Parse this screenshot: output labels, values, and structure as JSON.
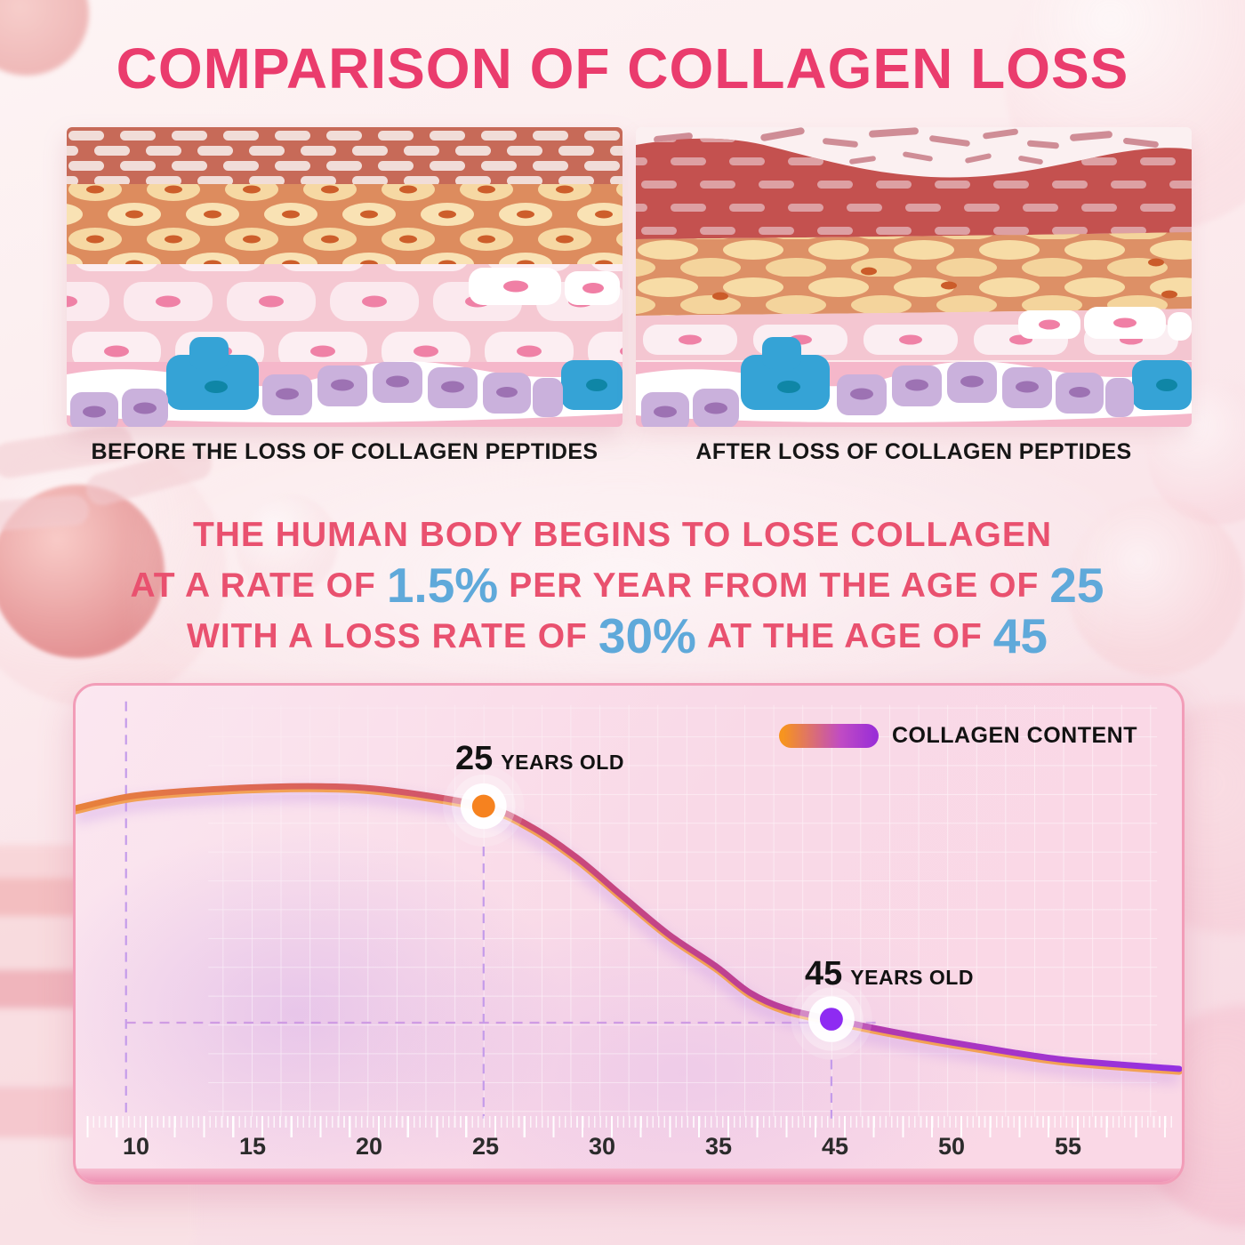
{
  "title": "COMPARISON OF COLLAGEN LOSS",
  "colors": {
    "title": "#EA3C6D",
    "statement_text": "#E9516F",
    "statement_numbers": "#5FA9DA",
    "panel_border": "#F29DB8",
    "curve_gradient_start": "#E8823A",
    "curve_gradient_end": "#9330E2"
  },
  "panels": {
    "before": {
      "label": "BEFORE THE LOSS OF COLLAGEN PEPTIDES"
    },
    "after": {
      "label": "AFTER LOSS OF COLLAGEN PEPTIDES"
    }
  },
  "statement": {
    "line1": "THE HUMAN BODY BEGINS TO LOSE COLLAGEN",
    "line2a": "AT A RATE OF",
    "line2_rate": "1.5%",
    "line2b": "PER YEAR FROM THE AGE OF",
    "line2_age": "25",
    "line3a": "WITH A LOSS RATE OF",
    "line3_rate": "30%",
    "line3b": "AT THE AGE OF",
    "line3_age": "45"
  },
  "chart": {
    "legend_label": "COLLAGEN CONTENT",
    "x_ticks": [
      "10",
      "15",
      "20",
      "25",
      "30",
      "35",
      "45",
      "50",
      "55"
    ]
  },
  "chart_data": {
    "type": "line",
    "title": "",
    "xlabel": "",
    "ylabel": "",
    "grid": true,
    "legend_position": "top-right",
    "x_tick_labels": [
      10,
      15,
      20,
      25,
      30,
      35,
      45,
      50,
      55
    ],
    "x_axis_note": "tick labels skip 40; axis positions are evenly spaced as labeled",
    "series": [
      {
        "name": "COLLAGEN CONTENT",
        "x": [
          7.4,
          10,
          14,
          18,
          21,
          25,
          27,
          29,
          31,
          33,
          35,
          38,
          41,
          45,
          48,
          51,
          55,
          60
        ],
        "values": [
          99.7,
          101.5,
          102.5,
          102.8,
          102.2,
          100,
          97.2,
          92.8,
          87.3,
          81.9,
          77.5,
          73.7,
          71.5,
          70,
          68,
          66.3,
          64.3,
          63
        ]
      }
    ],
    "annotations": [
      {
        "x": 25,
        "value": 100,
        "age_label": "25",
        "suffix": "YEARS OLD",
        "dot_color": "#F6821F"
      },
      {
        "x": 45,
        "value": 70,
        "age_label": "45",
        "suffix": "YEARS OLD",
        "dot_color": "#8E2BF2"
      }
    ],
    "colors": {
      "gradient_start": "#F7941E",
      "gradient_end": "#9B2FD6"
    }
  }
}
